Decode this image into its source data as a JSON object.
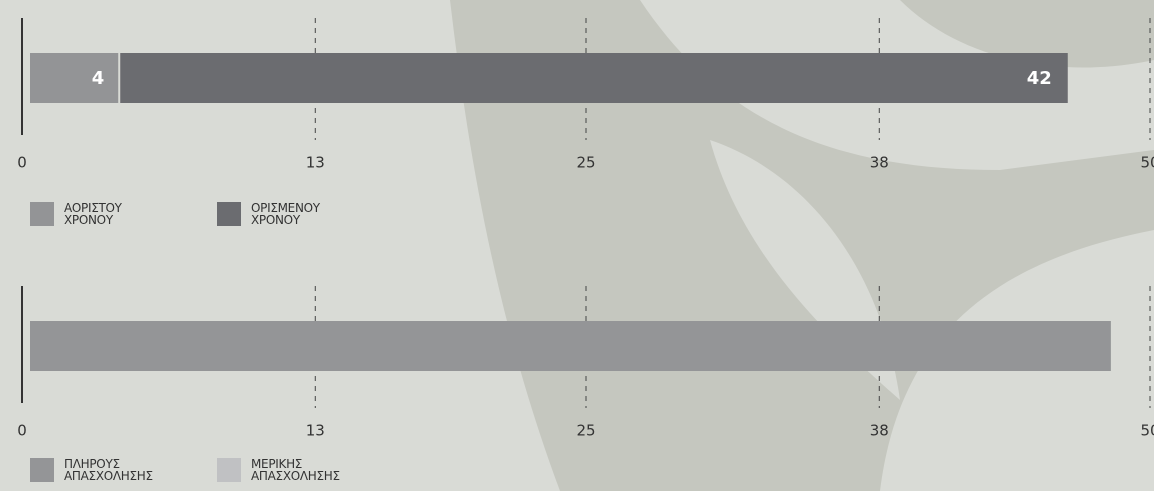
{
  "chart_data": [
    {
      "type": "stacked-bar",
      "orientation": "horizontal",
      "data_labels": true,
      "series": [
        {
          "name": "ΑΟΡΙΣΤΟΥ ΧΡΟΝΟΥ",
          "color": "#939496",
          "values": [
            4
          ]
        },
        {
          "name": "ΟΡΙΣΜΕΝΟΥ ΧΡΟΝΟΥ",
          "color": "#6b6c70",
          "values": [
            42
          ]
        }
      ],
      "xlim": [
        0,
        50
      ],
      "xticks": [
        0,
        13,
        25,
        38,
        50
      ],
      "grid": true
    },
    {
      "type": "stacked-bar",
      "orientation": "horizontal",
      "data_labels": false,
      "series": [
        {
          "name": "ΠΛΗΡΟΥΣ ΑΠΑΣΧΟΛΗΣΗΣ",
          "color": "#949597",
          "values": [
            48
          ]
        },
        {
          "name": "ΜΕΡΙΚΗΣ ΑΠΑΣΧΟΛΗΣΗΣ",
          "color": "#c0c1c3",
          "values": [
            0
          ]
        }
      ],
      "xlim": [
        0,
        50
      ],
      "xticks": [
        0,
        13,
        25,
        38,
        50
      ],
      "grid": true
    }
  ]
}
